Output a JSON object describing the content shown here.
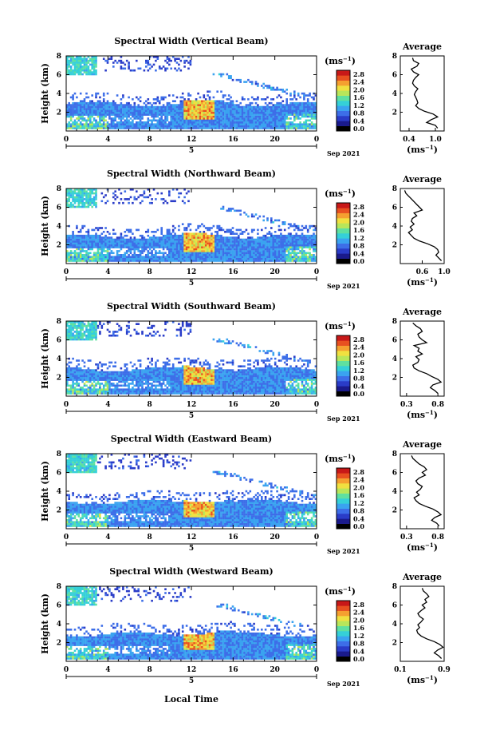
{
  "figure": {
    "x_axis_title": "Local Time",
    "date_label": "Sep 2021",
    "day_label": "5",
    "colorbar_unit": "(ms",
    "colorbar_unit_exp": "−1",
    "colorbar_ticks": [
      "0.0",
      "0.4",
      "0.8",
      "1.2",
      "1.6",
      "2.0",
      "2.4",
      "2.8"
    ],
    "average_title": "Average",
    "average_unit": "(ms",
    "average_unit_exp": "−1",
    "colors": {
      "scale": [
        "#000000",
        "#1a1a8c",
        "#2a3cc8",
        "#3d6ee8",
        "#3aa3f0",
        "#35d0d8",
        "#5fe0a0",
        "#b8e65a",
        "#f0e040",
        "#f5a030",
        "#e85020",
        "#c81818"
      ]
    }
  },
  "chart_data": [
    {
      "type": "heatmap",
      "title": "Spectral Width (Vertical Beam)",
      "xlabel": "Local Time",
      "ylabel": "Height (km)",
      "xlim": [
        0,
        24
      ],
      "ylim": [
        0,
        8
      ],
      "xticks": [
        "0",
        "4",
        "8",
        "12",
        "16",
        "20",
        "0"
      ],
      "yticks": [
        "2",
        "4",
        "6",
        "8"
      ],
      "colorbar": {
        "range": [
          0,
          2.8
        ],
        "unit": "(ms-1)"
      },
      "average_profile": {
        "xlabel": "(ms-1)",
        "xlim": [
          0.2,
          1.2
        ],
        "xticks": [
          "0.4",
          "1.0"
        ],
        "ylim": [
          0,
          8
        ],
        "yticks": [
          "2",
          "4",
          "6",
          "8"
        ],
        "heights": [
          0.3,
          0.6,
          0.9,
          1.2,
          1.5,
          1.8,
          2.1,
          2.4,
          2.7,
          3.0,
          3.3,
          3.6,
          3.9,
          4.2,
          4.5,
          4.8,
          5.1,
          5.4,
          5.7,
          6.0,
          6.3,
          6.6,
          6.9,
          7.2,
          7.5,
          7.8
        ],
        "values": [
          1.05,
          1.0,
          0.8,
          0.9,
          1.05,
          0.95,
          0.75,
          0.62,
          0.55,
          0.6,
          0.58,
          0.55,
          0.52,
          0.55,
          0.6,
          0.52,
          0.48,
          0.5,
          0.55,
          0.62,
          0.5,
          0.45,
          0.58,
          0.62,
          0.5,
          0.48
        ]
      }
    },
    {
      "type": "heatmap",
      "title": "Spectral Width (Northward Beam)",
      "xlabel": "Local Time",
      "ylabel": "Height (km)",
      "xlim": [
        0,
        24
      ],
      "ylim": [
        0,
        8
      ],
      "xticks": [
        "0",
        "4",
        "8",
        "12",
        "16",
        "20",
        "0"
      ],
      "yticks": [
        "2",
        "4",
        "6",
        "8"
      ],
      "colorbar": {
        "range": [
          0,
          2.8
        ],
        "unit": "(ms-1)"
      },
      "average_profile": {
        "xlabel": "(ms-1)",
        "xlim": [
          0.2,
          1.0
        ],
        "xticks": [
          "0.6",
          "1.0"
        ],
        "ylim": [
          0,
          8
        ],
        "yticks": [
          "2",
          "4",
          "6",
          "8"
        ],
        "heights": [
          0.3,
          0.6,
          0.9,
          1.2,
          1.5,
          1.8,
          2.1,
          2.4,
          2.7,
          3.0,
          3.3,
          3.6,
          3.9,
          4.2,
          4.5,
          4.8,
          5.1,
          5.4,
          5.7,
          6.0,
          6.3,
          6.6,
          6.9,
          7.2,
          7.5,
          7.8
        ],
        "values": [
          0.95,
          0.9,
          0.85,
          0.9,
          0.88,
          0.82,
          0.7,
          0.55,
          0.45,
          0.4,
          0.35,
          0.42,
          0.38,
          0.45,
          0.4,
          0.42,
          0.5,
          0.45,
          0.6,
          0.55,
          0.5,
          0.45,
          0.4,
          0.35,
          0.3,
          0.28
        ]
      }
    },
    {
      "type": "heatmap",
      "title": "Spectral Width (Southward Beam)",
      "xlabel": "Local Time",
      "ylabel": "Height (km)",
      "xlim": [
        0,
        24
      ],
      "ylim": [
        0,
        8
      ],
      "xticks": [
        "0",
        "4",
        "8",
        "12",
        "16",
        "20",
        "0"
      ],
      "yticks": [
        "2",
        "4",
        "6",
        "8"
      ],
      "colorbar": {
        "range": [
          0,
          2.8
        ],
        "unit": "(ms-1)"
      },
      "average_profile": {
        "xlabel": "(ms-1)",
        "xlim": [
          0.2,
          0.9
        ],
        "xticks": [
          "0.3",
          "0.8"
        ],
        "ylim": [
          0,
          8
        ],
        "yticks": [
          "2",
          "4",
          "6",
          "8"
        ],
        "heights": [
          0.3,
          0.6,
          0.9,
          1.2,
          1.5,
          1.8,
          2.1,
          2.4,
          2.7,
          3.0,
          3.3,
          3.6,
          3.9,
          4.2,
          4.5,
          4.8,
          5.1,
          5.4,
          5.7,
          6.0,
          6.3,
          6.6,
          6.9,
          7.2,
          7.5,
          7.8
        ],
        "values": [
          0.8,
          0.75,
          0.68,
          0.72,
          0.85,
          0.8,
          0.7,
          0.62,
          0.5,
          0.42,
          0.4,
          0.48,
          0.5,
          0.45,
          0.55,
          0.48,
          0.5,
          0.42,
          0.62,
          0.55,
          0.5,
          0.48,
          0.55,
          0.52,
          0.45,
          0.4
        ]
      }
    },
    {
      "type": "heatmap",
      "title": "Spectral Width (Eastward Beam)",
      "xlabel": "Local Time",
      "ylabel": "Height (km)",
      "xlim": [
        0,
        24
      ],
      "ylim": [
        0,
        8
      ],
      "xticks": [
        "0",
        "4",
        "8",
        "12",
        "16",
        "20",
        "0"
      ],
      "yticks": [
        "2",
        "4",
        "6",
        "8"
      ],
      "colorbar": {
        "range": [
          0,
          2.8
        ],
        "unit": "(ms-1)"
      },
      "average_profile": {
        "xlabel": "(ms-1)",
        "xlim": [
          0.2,
          0.9
        ],
        "xticks": [
          "0.3",
          "0.8"
        ],
        "ylim": [
          0,
          8
        ],
        "yticks": [
          "2",
          "4",
          "6",
          "8"
        ],
        "heights": [
          0.3,
          0.6,
          0.9,
          1.2,
          1.5,
          1.8,
          2.1,
          2.4,
          2.7,
          3.0,
          3.3,
          3.6,
          3.9,
          4.2,
          4.5,
          4.8,
          5.1,
          5.4,
          5.7,
          6.0,
          6.3,
          6.6,
          6.9,
          7.2,
          7.5,
          7.8
        ],
        "values": [
          0.82,
          0.78,
          0.7,
          0.75,
          0.85,
          0.8,
          0.72,
          0.6,
          0.5,
          0.45,
          0.42,
          0.5,
          0.46,
          0.52,
          0.55,
          0.48,
          0.45,
          0.5,
          0.6,
          0.55,
          0.62,
          0.58,
          0.5,
          0.45,
          0.4,
          0.38
        ]
      }
    },
    {
      "type": "heatmap",
      "title": "Spectral Width (Westward Beam)",
      "xlabel": "Local Time",
      "ylabel": "Height (km)",
      "xlim": [
        0,
        24
      ],
      "ylim": [
        0,
        8
      ],
      "xticks": [
        "0",
        "4",
        "8",
        "12",
        "16",
        "20",
        "0"
      ],
      "yticks": [
        "2",
        "4",
        "6",
        "8"
      ],
      "colorbar": {
        "range": [
          0,
          2.8
        ],
        "unit": "(ms-1)"
      },
      "average_profile": {
        "xlabel": "(ms-1)",
        "xlim": [
          0.1,
          0.9
        ],
        "xticks": [
          "0.1",
          "0.9"
        ],
        "ylim": [
          0,
          8
        ],
        "yticks": [
          "2",
          "4",
          "6",
          "8"
        ],
        "heights": [
          0.3,
          0.6,
          0.9,
          1.2,
          1.5,
          1.8,
          2.1,
          2.4,
          2.7,
          3.0,
          3.3,
          3.6,
          3.9,
          4.2,
          4.5,
          4.8,
          5.1,
          5.4,
          5.7,
          6.0,
          6.3,
          6.6,
          6.9,
          7.2,
          7.5,
          7.8
        ],
        "values": [
          0.85,
          0.8,
          0.72,
          0.78,
          0.88,
          0.82,
          0.72,
          0.58,
          0.48,
          0.42,
          0.4,
          0.45,
          0.42,
          0.48,
          0.52,
          0.45,
          0.42,
          0.48,
          0.55,
          0.5,
          0.58,
          0.55,
          0.62,
          0.58,
          0.52,
          0.5
        ]
      }
    }
  ]
}
